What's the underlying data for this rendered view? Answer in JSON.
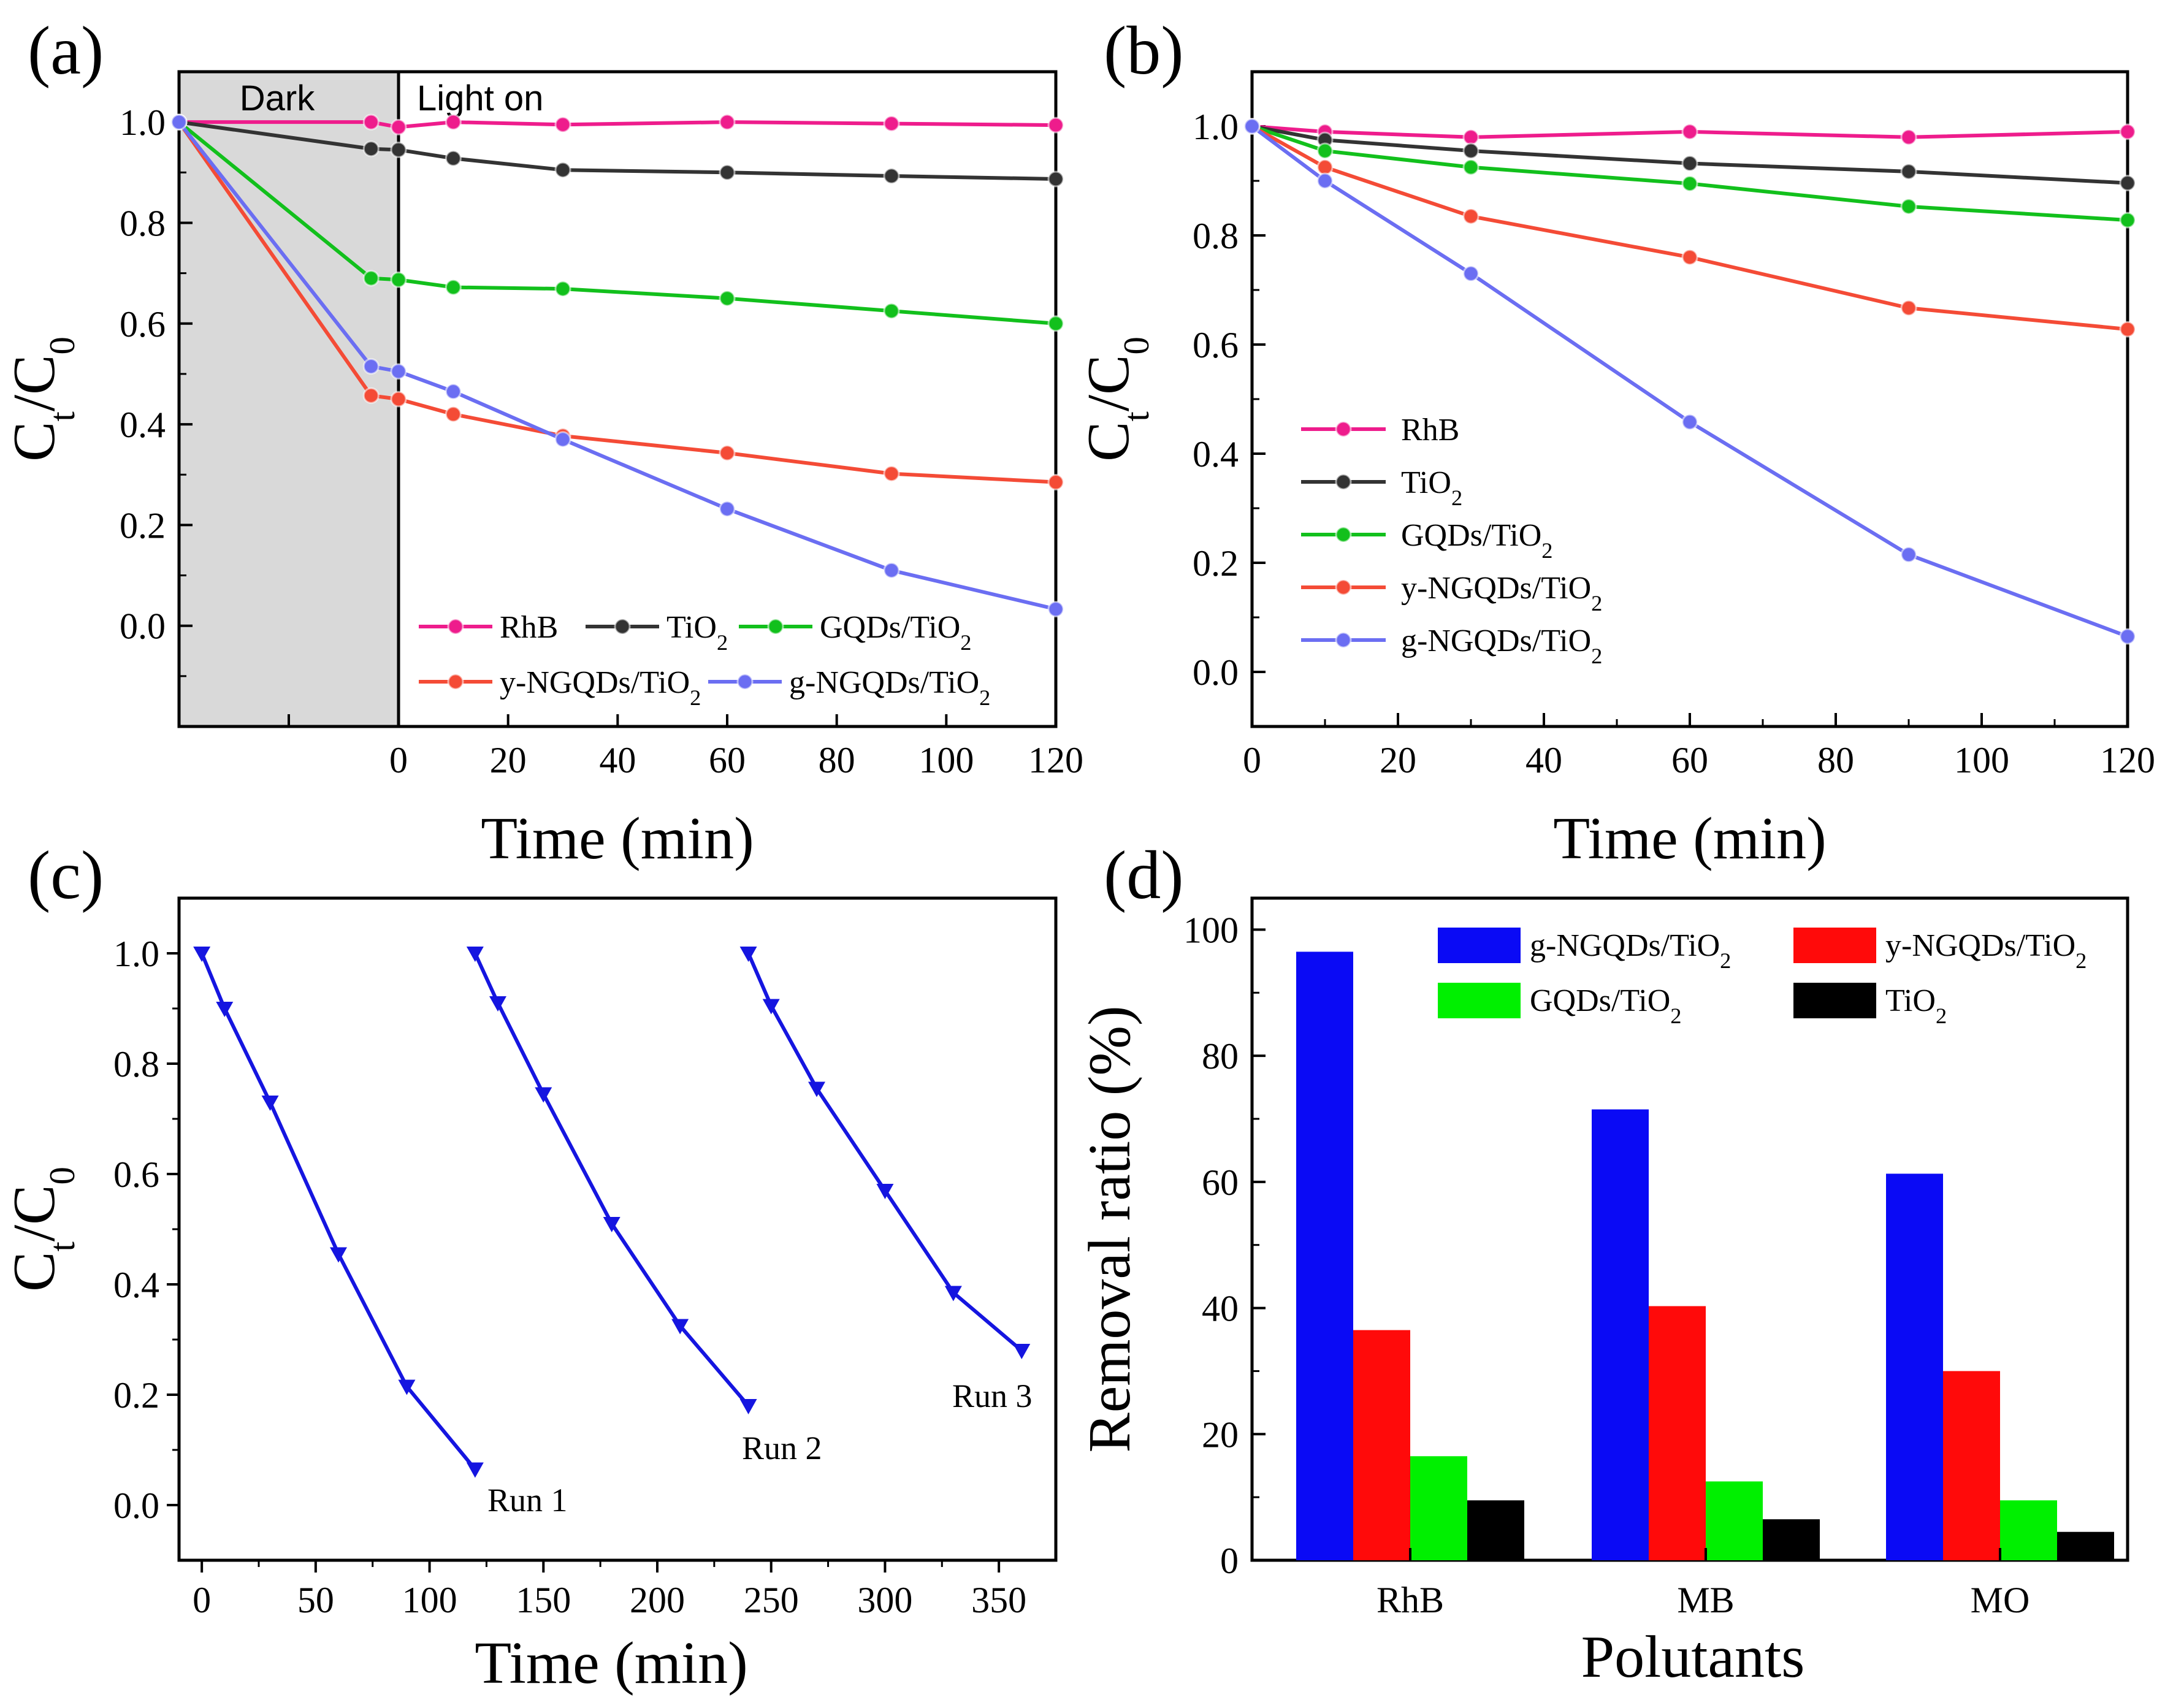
{
  "chart_data": [
    {
      "panel": "(a)",
      "type": "line",
      "xlabel": "Time (min)",
      "ylabel": "C_t/C_0",
      "xlim": [
        -40,
        120
      ],
      "ylim": [
        -0.2,
        1.1
      ],
      "xticks": [
        "0",
        "20",
        "40",
        "60",
        "80",
        "100",
        "120"
      ],
      "yticks": [
        "0.0",
        "0.2",
        "0.4",
        "0.6",
        "0.8",
        "1.0"
      ],
      "regions": [
        {
          "label": "Dark",
          "from": -40,
          "to": 0
        },
        {
          "label": "Light on",
          "from": 0,
          "to": 120
        }
      ],
      "legend_position": "lower-right",
      "series": [
        {
          "name": "RhB",
          "name_main": "RhB",
          "name_sub": "",
          "name_tail": "",
          "color": "#ee1c8c",
          "x": [
            -40,
            -5,
            0,
            10,
            30,
            60,
            90,
            120
          ],
          "y": [
            1.0,
            1.0,
            0.99,
            1.0,
            0.995,
            1.0,
            0.997,
            0.994
          ]
        },
        {
          "name": "TiO2",
          "name_main": "TiO",
          "name_sub": "2",
          "name_tail": "",
          "color": "#333333",
          "x": [
            -40,
            -5,
            0,
            10,
            30,
            60,
            90,
            120
          ],
          "y": [
            1.0,
            0.947,
            0.945,
            0.928,
            0.905,
            0.9,
            0.893,
            0.887
          ]
        },
        {
          "name": "GQDs/TiO2",
          "name_main": "GQDs/TiO",
          "name_sub": "2",
          "name_tail": "",
          "color": "#12c01c",
          "x": [
            -40,
            -5,
            0,
            10,
            30,
            60,
            90,
            120
          ],
          "y": [
            1.0,
            0.69,
            0.687,
            0.672,
            0.669,
            0.65,
            0.625,
            0.6
          ]
        },
        {
          "name": "y-NGQDs/TiO2",
          "name_main": "y-NGQDs/TiO",
          "name_sub": "2",
          "name_tail": "",
          "color": "#f44b36",
          "x": [
            -40,
            -5,
            0,
            10,
            30,
            60,
            90,
            120
          ],
          "y": [
            1.0,
            0.457,
            0.45,
            0.42,
            0.377,
            0.343,
            0.302,
            0.285
          ]
        },
        {
          "name": "g-NGQDs/TiO2",
          "name_main": "g-NGQDs/TiO",
          "name_sub": "2",
          "name_tail": "",
          "color": "#6b6ef2",
          "x": [
            -40,
            -5,
            0,
            10,
            30,
            60,
            90,
            120
          ],
          "y": [
            1.0,
            0.515,
            0.505,
            0.465,
            0.37,
            0.232,
            0.11,
            0.033
          ]
        }
      ]
    },
    {
      "panel": "(b)",
      "type": "line",
      "xlabel": "Time (min)",
      "ylabel": "C_t/C_0",
      "xlim": [
        0,
        120
      ],
      "ylim": [
        -0.1,
        1.1
      ],
      "xticks": [
        "0",
        "20",
        "40",
        "60",
        "80",
        "100",
        "120"
      ],
      "yticks": [
        "0.0",
        "0.2",
        "0.4",
        "0.6",
        "0.8",
        "1.0"
      ],
      "legend_position": "left",
      "series": [
        {
          "name": "RhB",
          "name_main": "RhB",
          "name_sub": "",
          "name_tail": "",
          "color": "#ee1c8c",
          "x": [
            0,
            10,
            30,
            60,
            90,
            120
          ],
          "y": [
            1.0,
            0.99,
            0.98,
            0.99,
            0.98,
            0.99
          ]
        },
        {
          "name": "TiO2",
          "name_main": "TiO",
          "name_sub": "2",
          "name_tail": "",
          "color": "#333333",
          "x": [
            0,
            10,
            30,
            60,
            90,
            120
          ],
          "y": [
            1.0,
            0.975,
            0.955,
            0.932,
            0.917,
            0.896
          ]
        },
        {
          "name": "GQDs/TiO2",
          "name_main": "GQDs/TiO",
          "name_sub": "2",
          "name_tail": "",
          "color": "#12c01c",
          "x": [
            0,
            10,
            30,
            60,
            90,
            120
          ],
          "y": [
            1.0,
            0.955,
            0.925,
            0.895,
            0.853,
            0.828
          ]
        },
        {
          "name": "y-NGQDs/TiO2",
          "name_main": "y-NGQDs/TiO",
          "name_sub": "2",
          "name_tail": "",
          "color": "#f44b36",
          "x": [
            0,
            10,
            30,
            60,
            90,
            120
          ],
          "y": [
            1.0,
            0.925,
            0.835,
            0.76,
            0.667,
            0.628
          ]
        },
        {
          "name": "g-NGQDs/TiO2",
          "name_main": "g-NGQDs/TiO",
          "name_sub": "2",
          "name_tail": "",
          "color": "#6b6ef2",
          "x": [
            0,
            10,
            30,
            60,
            90,
            120
          ],
          "y": [
            1.0,
            0.9,
            0.73,
            0.458,
            0.215,
            0.065
          ]
        }
      ]
    },
    {
      "panel": "(c)",
      "type": "line",
      "xlabel": "Time (min)",
      "ylabel": "C_t/C_0",
      "xlim": [
        -10,
        375
      ],
      "ylim": [
        -0.1,
        1.1
      ],
      "xticks": [
        "0",
        "50",
        "100",
        "150",
        "200",
        "250",
        "300",
        "350"
      ],
      "yticks": [
        "0.0",
        "0.2",
        "0.4",
        "0.6",
        "0.8",
        "1.0"
      ],
      "series": [
        {
          "name": "Run 1",
          "color": "#1515e0",
          "x": [
            0,
            10,
            30,
            60,
            90,
            120
          ],
          "y": [
            1.0,
            0.9,
            0.73,
            0.455,
            0.215,
            0.065
          ]
        },
        {
          "name": "Run 2",
          "color": "#1515e0",
          "x": [
            120,
            130,
            150,
            180,
            210,
            240
          ],
          "y": [
            1.0,
            0.91,
            0.745,
            0.51,
            0.325,
            0.18
          ]
        },
        {
          "name": "Run 3",
          "color": "#1515e0",
          "x": [
            240,
            250,
            270,
            300,
            330,
            360
          ],
          "y": [
            1.0,
            0.905,
            0.755,
            0.57,
            0.385,
            0.28
          ]
        }
      ]
    },
    {
      "panel": "(d)",
      "type": "bar",
      "xlabel": "Polutants",
      "ylabel": "Removal ratio (%)",
      "ylim": [
        0,
        105
      ],
      "yticks": [
        "0",
        "20",
        "40",
        "60",
        "80",
        "100"
      ],
      "categories": [
        "RhB",
        "MB",
        "MO"
      ],
      "legend_position": "top-right",
      "series": [
        {
          "name": "g-NGQDs/TiO2",
          "name_main": "g-NGQDs/TiO",
          "name_sub": "2",
          "name_tail": "",
          "color": "#0a0af5",
          "values": [
            96.5,
            71.5,
            61.3
          ]
        },
        {
          "name": "y-NGQDs/TiO2",
          "name_main": "y-NGQDs/TiO",
          "name_sub": "2",
          "name_tail": "",
          "color": "#ff0a0a",
          "values": [
            36.5,
            40.3,
            30.0
          ]
        },
        {
          "name": "GQDs/TiO2",
          "name_main": "GQDs/TiO",
          "name_sub": "2",
          "name_tail": "",
          "color": "#00f000",
          "values": [
            16.5,
            12.5,
            9.5
          ]
        },
        {
          "name": "TiO2",
          "name_main": "TiO",
          "name_sub": "2",
          "name_tail": "",
          "color": "#000000",
          "values": [
            9.5,
            6.5,
            4.5
          ]
        }
      ]
    }
  ]
}
